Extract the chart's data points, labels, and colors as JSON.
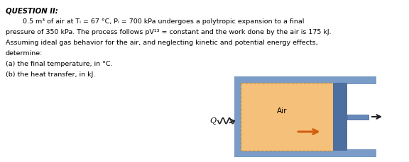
{
  "title": "QUESTION II:",
  "line1": "        0.5 m³ of air at Tᵢ = 67 °C, Pᵢ = 700 kPa undergoes a polytropic expansion to a final",
  "line2": "pressure of 350 kPa. The process follows pV¹³ = constant and the work done by the air is 175 kJ.",
  "line3": "Assuming ideal gas behavior for the air, and neglecting kinetic and potential energy effects,",
  "line4": "determine:",
  "line5": "(a) the final temperature, in °C.",
  "line6": "(b) the heat transfer, in kJ.",
  "bg_color": "#ffffff",
  "outer_color": "#7a9cc7",
  "inner_color": "#f5c07a",
  "piston_color": "#4d6fa0",
  "rod_color": "#6688bb",
  "air_label": "Air",
  "q_label": "Q",
  "text_color": "#000000",
  "arrow_color": "#222222",
  "piston_arrow_color": "#d06010"
}
